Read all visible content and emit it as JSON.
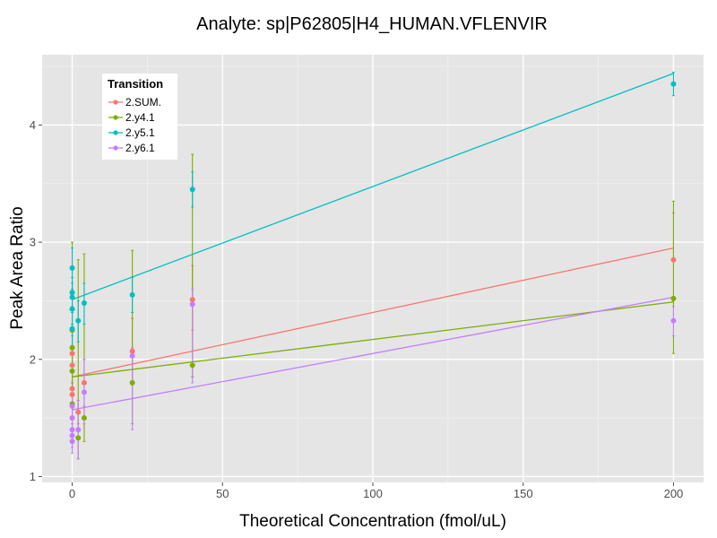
{
  "chart_data": {
    "type": "scatter",
    "title": "Analyte: sp|P62805|H4_HUMAN.VFLENVIR",
    "xlabel": "Theoretical Concentration (fmol/uL)",
    "ylabel": "Peak Area Ratio",
    "xlim": [
      -10,
      210
    ],
    "ylim": [
      0.95,
      4.6
    ],
    "x_ticks": [
      0,
      50,
      100,
      150,
      200
    ],
    "y_ticks": [
      1,
      2,
      3,
      4
    ],
    "grid": true,
    "legend": {
      "title": "Transition",
      "position": "top-left"
    },
    "series": [
      {
        "name": "2.SUM.",
        "color": "#F8766D",
        "fit": {
          "x0": 0,
          "y0": 1.85,
          "x1": 200,
          "y1": 2.95
        },
        "points": [
          {
            "x": 0,
            "y": 1.75,
            "low": 1.6,
            "high": 1.9
          },
          {
            "x": 0,
            "y": 1.95,
            "low": 1.8,
            "high": 2.05
          },
          {
            "x": 0,
            "y": 1.7,
            "low": 1.6,
            "high": 1.8
          },
          {
            "x": 0,
            "y": 2.05,
            "low": 1.9,
            "high": 2.2
          },
          {
            "x": 2,
            "y": 1.55,
            "low": 1.45,
            "high": 1.65
          },
          {
            "x": 4,
            "y": 1.8,
            "low": 1.6,
            "high": 2.0
          },
          {
            "x": 20,
            "y": 2.07,
            "low": 1.8,
            "high": 2.35
          },
          {
            "x": 40,
            "y": 2.51,
            "low": 2.25,
            "high": 2.8
          },
          {
            "x": 200,
            "y": 2.85,
            "low": 2.5,
            "high": 3.25
          }
        ]
      },
      {
        "name": "2.y4.1",
        "color": "#7CAE00",
        "fit": {
          "x0": 0,
          "y0": 1.85,
          "x1": 200,
          "y1": 2.49
        },
        "points": [
          {
            "x": 0,
            "y": 2.25,
            "low": 1.5,
            "high": 3.0
          },
          {
            "x": 0,
            "y": 2.1,
            "low": 1.9,
            "high": 2.3
          },
          {
            "x": 0,
            "y": 1.9,
            "low": 1.75,
            "high": 2.05
          },
          {
            "x": 0,
            "y": 1.62,
            "low": 1.5,
            "high": 1.75
          },
          {
            "x": 2,
            "y": 1.33,
            "low": 1.15,
            "high": 2.85
          },
          {
            "x": 4,
            "y": 1.5,
            "low": 1.3,
            "high": 2.9
          },
          {
            "x": 20,
            "y": 1.8,
            "low": 1.45,
            "high": 2.93
          },
          {
            "x": 40,
            "y": 1.95,
            "low": 1.85,
            "high": 3.75
          },
          {
            "x": 200,
            "y": 2.52,
            "low": 2.05,
            "high": 3.35
          }
        ]
      },
      {
        "name": "2.y5.1",
        "color": "#00BFC4",
        "fit": {
          "x0": 0,
          "y0": 2.51,
          "x1": 200,
          "y1": 4.44
        },
        "points": [
          {
            "x": 0,
            "y": 2.78,
            "low": 2.6,
            "high": 2.95
          },
          {
            "x": 0,
            "y": 2.57,
            "low": 2.45,
            "high": 2.7
          },
          {
            "x": 0,
            "y": 2.53,
            "low": 2.4,
            "high": 2.65
          },
          {
            "x": 0,
            "y": 2.43,
            "low": 2.3,
            "high": 2.55
          },
          {
            "x": 0,
            "y": 2.26,
            "low": 2.1,
            "high": 2.4
          },
          {
            "x": 2,
            "y": 2.33,
            "low": 2.15,
            "high": 2.5
          },
          {
            "x": 4,
            "y": 2.48,
            "low": 2.3,
            "high": 2.65
          },
          {
            "x": 20,
            "y": 2.55,
            "low": 2.4,
            "high": 2.7
          },
          {
            "x": 40,
            "y": 3.45,
            "low": 3.3,
            "high": 3.6
          },
          {
            "x": 200,
            "y": 4.35,
            "low": 4.25,
            "high": 4.45
          }
        ]
      },
      {
        "name": "2.y6.1",
        "color": "#C77CFF",
        "fit": {
          "x0": 0,
          "y0": 1.57,
          "x1": 200,
          "y1": 2.53
        },
        "points": [
          {
            "x": 0,
            "y": 1.5,
            "low": 1.4,
            "high": 1.6
          },
          {
            "x": 0,
            "y": 1.4,
            "low": 1.3,
            "high": 1.5
          },
          {
            "x": 0,
            "y": 1.35,
            "low": 1.25,
            "high": 1.45
          },
          {
            "x": 0,
            "y": 1.3,
            "low": 1.2,
            "high": 1.4
          },
          {
            "x": 0,
            "y": 1.6,
            "low": 1.45,
            "high": 1.75
          },
          {
            "x": 2,
            "y": 1.4,
            "low": 1.15,
            "high": 1.65
          },
          {
            "x": 4,
            "y": 1.72,
            "low": 1.45,
            "high": 2.0
          },
          {
            "x": 20,
            "y": 2.03,
            "low": 1.4,
            "high": 2.1
          },
          {
            "x": 40,
            "y": 2.47,
            "low": 1.8,
            "high": 2.6
          },
          {
            "x": 200,
            "y": 2.33,
            "low": 2.2,
            "high": 2.45
          }
        ]
      }
    ]
  }
}
